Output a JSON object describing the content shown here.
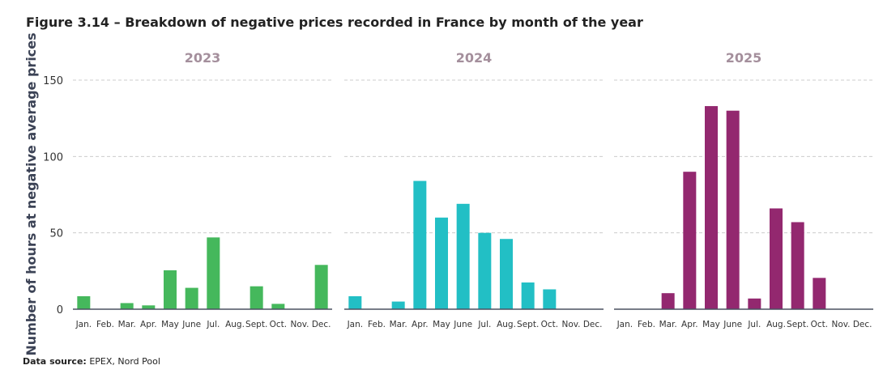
{
  "title": "Figure 3.14 – Breakdown of negative prices recorded in France by month of the year",
  "source_label": "Data source:",
  "source_text": "EPEX, Nord Pool",
  "chart_data": [
    {
      "type": "bar",
      "title": "2023",
      "color": "#45b85c",
      "ylabel": "Number of hours at negative average prices",
      "ylim": [
        0,
        150
      ],
      "yticks": [
        0,
        50,
        100,
        150
      ],
      "grid": true,
      "categories": [
        "Jan.",
        "Feb.",
        "Mar.",
        "Apr.",
        "May",
        "June",
        "Jul.",
        "Aug.",
        "Sept.",
        "Oct.",
        "Nov.",
        "Dec."
      ],
      "values": [
        8.5,
        0,
        4,
        2.5,
        25.5,
        14,
        47,
        0,
        15,
        3.5,
        0,
        29
      ]
    },
    {
      "type": "bar",
      "title": "2024",
      "color": "#22bfc5",
      "ylim": [
        0,
        150
      ],
      "grid": true,
      "categories": [
        "Jan.",
        "Feb.",
        "Mar.",
        "Apr.",
        "May",
        "June",
        "Jul.",
        "Aug.",
        "Sept.",
        "Oct.",
        "Nov.",
        "Dec."
      ],
      "values": [
        8.5,
        0,
        5,
        84,
        60,
        69,
        50,
        46,
        17.5,
        13,
        0,
        0
      ]
    },
    {
      "type": "bar",
      "title": "2025",
      "color": "#93286f",
      "ylim": [
        0,
        150
      ],
      "grid": true,
      "categories": [
        "Jan.",
        "Feb.",
        "Mar.",
        "Apr.",
        "May",
        "June",
        "Jul.",
        "Aug.",
        "Sept.",
        "Oct.",
        "Nov.",
        "Dec."
      ],
      "values": [
        0,
        0,
        10.5,
        90,
        133,
        130,
        7,
        66,
        57,
        20.5,
        0,
        0
      ]
    }
  ]
}
